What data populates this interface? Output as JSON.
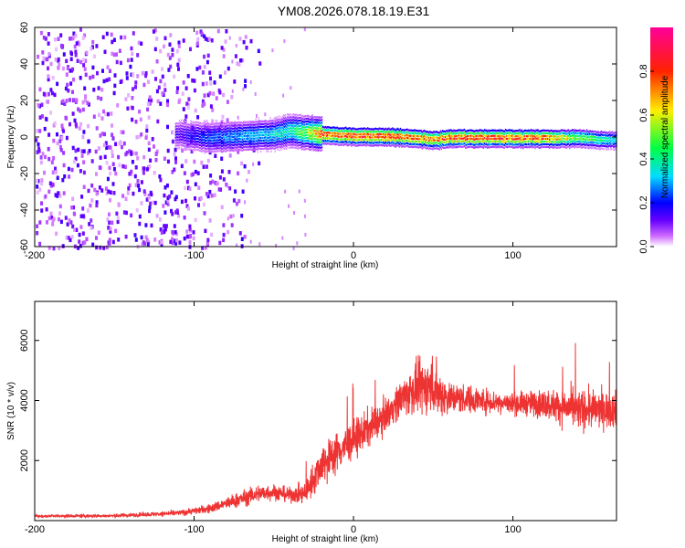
{
  "title": "YM08.2026.078.18.19.E31",
  "colorbar": {
    "label": "Normalized spectral amplitude",
    "ticks": [
      "0.0",
      "0.2",
      "0.4",
      "0.6",
      "0.8"
    ],
    "tick_values": [
      0.0,
      0.2,
      0.4,
      0.6,
      0.8
    ],
    "range": [
      0.0,
      1.0
    ],
    "colormap": "hsv-rainbow (purple→blue→cyan→green→yellow→red→magenta)"
  },
  "chart_data": [
    {
      "type": "heatmap",
      "xlabel": "Height of straight line (km)",
      "ylabel": "Frequency (Hz)",
      "xlim": [
        -200,
        165
      ],
      "ylim": [
        -60,
        60
      ],
      "x_ticks": [
        -200,
        -100,
        0,
        100
      ],
      "y_ticks": [
        -60,
        -40,
        -20,
        0,
        20,
        40,
        60
      ],
      "x_tick_labels": [
        "-200",
        "-100",
        "0",
        "100"
      ],
      "y_tick_labels": [
        "-60",
        "-40",
        "-20",
        "0",
        "20",
        "40",
        "60"
      ],
      "ridge": {
        "description": "narrow band near 0 Hz from about -110 km to 165 km",
        "x": [
          -110,
          -90,
          -70,
          -50,
          -40,
          -30,
          -20,
          0,
          20,
          40,
          50,
          60,
          80,
          100,
          120,
          140,
          160
        ],
        "center_hz": [
          2,
          0,
          1,
          2,
          4,
          3,
          2,
          1,
          1,
          0,
          -1,
          0,
          0,
          0,
          0,
          0,
          -1
        ],
        "peak_amplitude": [
          0.15,
          0.25,
          0.3,
          0.35,
          0.4,
          0.55,
          0.8,
          0.85,
          0.85,
          0.8,
          0.75,
          0.85,
          0.85,
          0.85,
          0.8,
          0.55,
          0.4
        ]
      },
      "noise_region": {
        "x_range": [
          -200,
          -85
        ],
        "amplitude": [
          0.0,
          0.15
        ]
      }
    },
    {
      "type": "line",
      "xlabel": "Height of straight line (km)",
      "ylabel": "SNR (10 * v/v)",
      "xlim": [
        -200,
        165
      ],
      "ylim": [
        0,
        7300
      ],
      "x_ticks": [
        -200,
        -100,
        0,
        100
      ],
      "y_ticks": [
        2000,
        4000,
        6000
      ],
      "x_tick_labels": [
        "-200",
        "-100",
        "0",
        "100"
      ],
      "y_tick_labels": [
        "2000",
        "4000",
        "6000"
      ],
      "color": "#ee3333",
      "envelope": {
        "x": [
          -200,
          -150,
          -110,
          -90,
          -75,
          -60,
          -50,
          -40,
          -30,
          -25,
          -20,
          -10,
          0,
          10,
          20,
          25,
          30,
          40,
          50,
          55,
          60,
          80,
          100,
          120,
          140,
          160,
          165
        ],
        "mean": [
          150,
          160,
          250,
          400,
          650,
          900,
          950,
          850,
          900,
          1400,
          1900,
          2300,
          2700,
          3100,
          3500,
          3800,
          4100,
          4400,
          4500,
          4200,
          4100,
          4000,
          3900,
          3900,
          3700,
          3700,
          3700
        ],
        "spread": [
          80,
          100,
          150,
          250,
          400,
          500,
          450,
          400,
          600,
          900,
          1100,
          1100,
          1100,
          1000,
          900,
          900,
          1100,
          1400,
          1600,
          1300,
          900,
          700,
          600,
          800,
          1100,
          1000,
          1000
        ]
      }
    }
  ]
}
